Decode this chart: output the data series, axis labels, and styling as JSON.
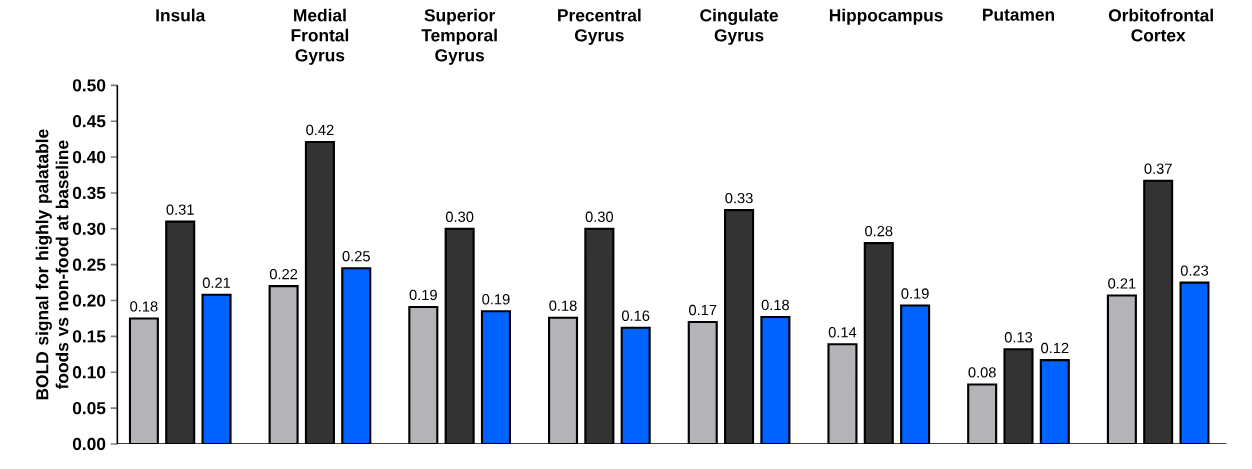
{
  "chart_data": {
    "type": "bar",
    "ylabel": "BOLD signal for highly palatable foods vs non-food at baseline",
    "categories": [
      "Insula",
      "Medial Frontal Gyrus",
      "Superior Temporal Gyrus",
      "Precentral Gyrus",
      "Cingulate Gyrus",
      "Hippocampus",
      "Putamen",
      "Orbitofrontal Cortex"
    ],
    "series": [
      {
        "color": "#b4b4b8",
        "values": [
          0.175,
          0.22,
          0.191,
          0.176,
          0.17,
          0.139,
          0.083,
          0.207
        ],
        "value_labels": [
          "0.18",
          "0.22",
          "0.19",
          "0.18",
          "0.17",
          "0.14",
          "0.08",
          "0.21"
        ]
      },
      {
        "color": "#333333",
        "values": [
          0.31,
          0.421,
          0.3,
          0.3,
          0.326,
          0.28,
          0.132,
          0.367
        ],
        "value_labels": [
          "0.31",
          "0.42",
          "0.30",
          "0.30",
          "0.33",
          "0.28",
          "0.13",
          "0.37"
        ]
      },
      {
        "color": "#0062ff",
        "values": [
          0.208,
          0.245,
          0.185,
          0.162,
          0.177,
          0.193,
          0.117,
          0.225
        ],
        "value_labels": [
          "0.21",
          "0.25",
          "0.19",
          "0.16",
          "0.18",
          "0.19",
          "0.12",
          "0.23"
        ]
      }
    ],
    "ylim": [
      0,
      0.5
    ],
    "yticks": [
      {
        "value": 0,
        "label": "0.00"
      },
      0.05,
      {
        "value": 0.1,
        "label": "0.10"
      },
      0.15,
      {
        "value": 0.2,
        "label": "0.20"
      },
      0.25,
      {
        "value": 0.3,
        "label": "0.30"
      },
      0.35,
      {
        "value": 0.4,
        "label": "0.40"
      },
      0.45,
      {
        "value": 0.5,
        "label": "0.50"
      }
    ],
    "grid": false
  }
}
